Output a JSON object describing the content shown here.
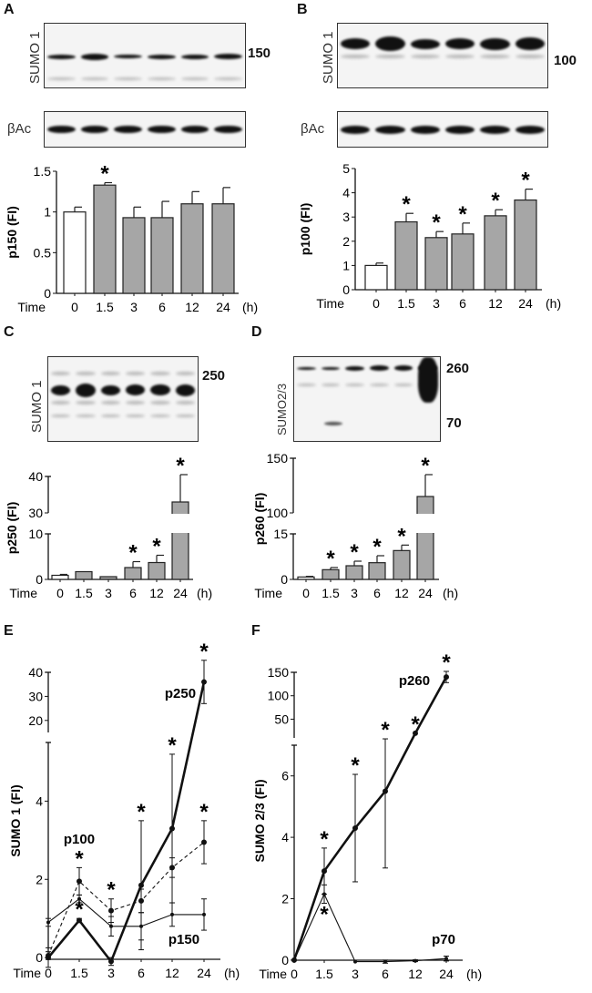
{
  "panels": {
    "A": {
      "label": "A",
      "blot_label": "SUMO 1",
      "loading_label": "βAc",
      "marker": "150"
    },
    "B": {
      "label": "B",
      "blot_label": "SUMO 1",
      "loading_label": "βAc",
      "marker": "100"
    },
    "C": {
      "label": "C",
      "blot_label": "SUMO 1",
      "marker": "250"
    },
    "D": {
      "label": "D",
      "blot_label": "SUMO2/3",
      "markers": [
        "260",
        "70"
      ]
    },
    "E": {
      "label": "E"
    },
    "F": {
      "label": "F"
    }
  },
  "chart_data": [
    {
      "panel": "A",
      "type": "bar",
      "ylabel": "p150 (FI)",
      "xlabel_prefix": "Time",
      "xunit": "(h)",
      "categories": [
        "0",
        "1.5",
        "3",
        "6",
        "12",
        "24"
      ],
      "values": [
        1.0,
        1.33,
        0.93,
        0.93,
        1.1,
        1.1
      ],
      "errors": [
        0.06,
        0.03,
        0.13,
        0.2,
        0.15,
        0.2
      ],
      "significant": [
        false,
        true,
        false,
        false,
        false,
        false
      ],
      "colors": [
        "#ffffff",
        "#a6a6a6"
      ],
      "yticks": [
        0,
        0.5,
        1,
        1.5
      ],
      "ytick_labels": [
        "0",
        "0.5",
        "1",
        "1.5"
      ],
      "ylim": [
        0,
        1.5
      ]
    },
    {
      "panel": "B",
      "type": "bar",
      "ylabel": "p100 (FI)",
      "xlabel_prefix": "Time",
      "xunit": "(h)",
      "categories": [
        "0",
        "1.5",
        "3",
        "6",
        "12",
        "24"
      ],
      "values": [
        1.0,
        2.8,
        2.15,
        2.3,
        3.05,
        3.7
      ],
      "errors": [
        0.1,
        0.35,
        0.25,
        0.45,
        0.25,
        0.45
      ],
      "significant": [
        false,
        true,
        true,
        true,
        true,
        true
      ],
      "colors": [
        "#ffffff",
        "#a6a6a6"
      ],
      "yticks": [
        0,
        1,
        2,
        3,
        4,
        5
      ],
      "ytick_labels": [
        "0",
        "1",
        "2",
        "3",
        "4",
        "5"
      ],
      "ylim": [
        0,
        5
      ]
    },
    {
      "panel": "C",
      "type": "bar",
      "ylabel": "p250 (FI)",
      "xlabel_prefix": "Time",
      "xunit": "(h)",
      "categories": [
        "0",
        "1.5",
        "3",
        "6",
        "12",
        "24"
      ],
      "values": [
        0.9,
        1.7,
        0.6,
        2.6,
        3.7,
        33
      ],
      "errors": [
        0.2,
        0.0,
        0.0,
        1.3,
        1.6,
        7.5
      ],
      "significant": [
        false,
        false,
        false,
        true,
        true,
        true
      ],
      "colors": [
        "#ffffff",
        "#a6a6a6"
      ],
      "yticks": [
        0,
        10,
        30,
        40
      ],
      "ytick_labels": [
        "0",
        "10",
        "30",
        "40"
      ],
      "axis_break": [
        10,
        30
      ],
      "ylim": [
        0,
        40
      ]
    },
    {
      "panel": "D",
      "type": "bar",
      "ylabel": "p260 (FI)",
      "xlabel_prefix": "Time",
      "xunit": "(h)",
      "categories": [
        "0",
        "1.5",
        "3",
        "6",
        "12",
        "24"
      ],
      "values": [
        0.8,
        3.2,
        4.5,
        5.5,
        9.5,
        115
      ],
      "errors": [
        0.2,
        0.7,
        1.5,
        2.3,
        1.8,
        20
      ],
      "significant": [
        false,
        true,
        true,
        true,
        true,
        true
      ],
      "colors": [
        "#ffffff",
        "#a6a6a6"
      ],
      "yticks": [
        0,
        15,
        100,
        150
      ],
      "ytick_labels": [
        "0",
        "15",
        "100",
        "150"
      ],
      "axis_break": [
        15,
        100
      ],
      "ylim": [
        0,
        150
      ]
    },
    {
      "panel": "E",
      "type": "line",
      "ylabel": "SUMO 1 (FI)",
      "xlabel_prefix": "Time",
      "xunit": "(h)",
      "categories": [
        "0",
        "1.5",
        "3",
        "6",
        "12",
        "24"
      ],
      "yticks": [
        0,
        2,
        4,
        20,
        30,
        40
      ],
      "ytick_labels": [
        "0",
        "2",
        "4",
        "20",
        "30",
        "40"
      ],
      "axis_break": [
        5.5,
        15
      ],
      "ylim": [
        0,
        40
      ],
      "series": [
        {
          "name": "p250",
          "style": "thick",
          "values": [
            0,
            0.95,
            -0.1,
            1.85,
            3.3,
            36
          ],
          "errors": [
            0.25,
            0.05,
            0.1,
            1.65,
            1.9,
            9
          ],
          "significant": [
            false,
            true,
            false,
            true,
            true,
            true
          ]
        },
        {
          "name": "p100",
          "style": "dashed",
          "values": [
            0.05,
            1.95,
            1.2,
            1.45,
            2.3,
            2.95
          ],
          "errors": [
            0.1,
            0.35,
            0.3,
            0.3,
            0.25,
            0.55
          ],
          "significant": [
            false,
            true,
            true,
            false,
            false,
            true
          ]
        },
        {
          "name": "p150",
          "style": "thin",
          "values": [
            0.9,
            1.5,
            0.8,
            0.8,
            1.1,
            1.1
          ],
          "errors": [
            0.1,
            0.1,
            0.25,
            0.35,
            0.3,
            0.4
          ],
          "significant": [
            false,
            false,
            false,
            false,
            false,
            false
          ]
        }
      ]
    },
    {
      "panel": "F",
      "type": "line",
      "ylabel": "SUMO 2/3 (FI)",
      "xlabel_prefix": "Time",
      "xunit": "(h)",
      "categories": [
        "0",
        "1.5",
        "3",
        "6",
        "12",
        "24"
      ],
      "yticks": [
        0,
        2,
        4,
        6,
        50,
        100,
        150
      ],
      "ytick_labels": [
        "0",
        "2",
        "4",
        "6",
        "50",
        "100",
        "150"
      ],
      "axis_break": [
        7,
        10
      ],
      "ylim": [
        0,
        150
      ],
      "series": [
        {
          "name": "p260",
          "style": "thick",
          "values": [
            0,
            2.9,
            4.3,
            5.5,
            20,
            140
          ],
          "errors": [
            0,
            0.75,
            1.75,
            2.5,
            0,
            12
          ],
          "significant": [
            false,
            true,
            true,
            true,
            true,
            true
          ]
        },
        {
          "name": "p70",
          "style": "thin",
          "values": [
            0,
            2.15,
            -0.05,
            -0.05,
            -0.02,
            0.05
          ],
          "errors": [
            0,
            0.3,
            0,
            0.05,
            0.03,
            0.08
          ],
          "significant": [
            false,
            true,
            false,
            false,
            false,
            false
          ],
          "significance_below": true
        }
      ]
    }
  ]
}
